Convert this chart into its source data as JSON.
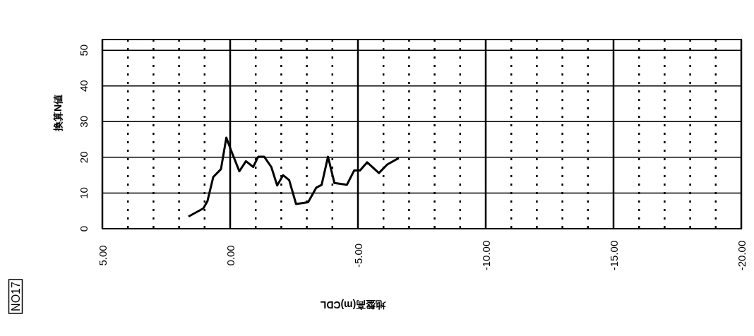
{
  "chart_data": {
    "type": "line",
    "xlabel": "地盤高(m)CDL",
    "ylabel": "換算N値",
    "annotations": [
      "NO17"
    ],
    "x": [
      1.63,
      1.05,
      0.89,
      0.66,
      0.36,
      0.15,
      -0.04,
      -0.36,
      -0.62,
      -0.9,
      -1.1,
      -1.33,
      -1.61,
      -1.84,
      -2.07,
      -2.31,
      -2.58,
      -3.05,
      -3.23,
      -3.37,
      -3.58,
      -3.83,
      -4.08,
      -4.57,
      -4.85,
      -5.08,
      -5.36,
      -5.82,
      -6.15,
      -6.6
    ],
    "series": [
      {
        "color": "#000000",
        "values": [
          3.4,
          5.7,
          7.7,
          14.5,
          16.7,
          25.5,
          21.9,
          16.1,
          18.9,
          17.3,
          20.2,
          20.2,
          17.3,
          12.1,
          15,
          13.6,
          6.9,
          7.4,
          9.7,
          11.5,
          12.3,
          20.2,
          12.8,
          12.3,
          16.3,
          16.3,
          18.6,
          15.6,
          18,
          19.8
        ]
      }
    ],
    "xlim": [
      5,
      -20
    ],
    "ylim": [
      0,
      53
    ],
    "xticks": [
      {
        "value": 5,
        "label": "5.00"
      },
      {
        "value": 4,
        "label": null
      },
      {
        "value": 3,
        "label": null
      },
      {
        "value": 2,
        "label": null
      },
      {
        "value": 1,
        "label": null
      },
      {
        "value": 0,
        "label": "0.00"
      },
      {
        "value": -1,
        "label": null
      },
      {
        "value": -2,
        "label": null
      },
      {
        "value": -3,
        "label": null
      },
      {
        "value": -4,
        "label": null
      },
      {
        "value": -5,
        "label": "-5.00"
      },
      {
        "value": -6,
        "label": null
      },
      {
        "value": -7,
        "label": null
      },
      {
        "value": -8,
        "label": null
      },
      {
        "value": -9,
        "label": null
      },
      {
        "value": -10,
        "label": "-10.00"
      },
      {
        "value": -11,
        "label": null
      },
      {
        "value": -12,
        "label": null
      },
      {
        "value": -13,
        "label": null
      },
      {
        "value": -14,
        "label": null
      },
      {
        "value": -15,
        "label": "-15.00"
      },
      {
        "value": -16,
        "label": null
      },
      {
        "value": -17,
        "label": null
      },
      {
        "value": -18,
        "label": null
      },
      {
        "value": -19,
        "label": null
      },
      {
        "value": -20,
        "label": "-20.00"
      }
    ],
    "yticks": [
      0,
      10,
      20,
      30,
      40,
      50
    ],
    "grid": true,
    "marker": "none",
    "line_style": "solid"
  }
}
